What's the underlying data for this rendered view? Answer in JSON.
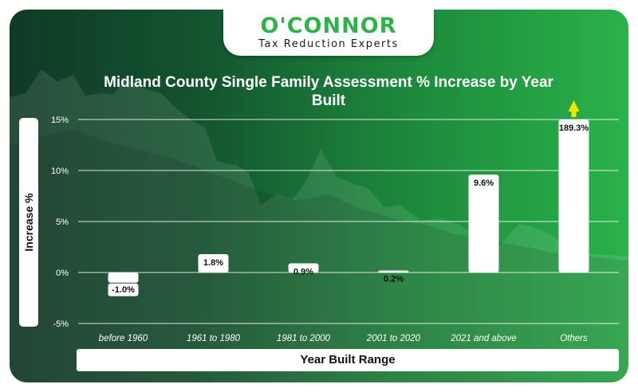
{
  "brand": {
    "name": "O'CONNOR",
    "tagline": "Tax Reduction Experts"
  },
  "colors": {
    "accent": "#2db34a",
    "bar": "#ffffff",
    "arrow": "#f2e600"
  },
  "chart_data": {
    "type": "bar",
    "title": "Midland County Single Family Assessment % Increase by Year Built",
    "xlabel": "Year Built Range",
    "ylabel": "Increase %",
    "categories": [
      "before 1960",
      "1961 to 1980",
      "1981 to 2000",
      "2001 to 2020",
      "2021 and above",
      "Others"
    ],
    "values": [
      -1.0,
      1.8,
      0.9,
      0.2,
      9.6,
      189.3
    ],
    "value_labels": [
      "-1.0%",
      "1.8%",
      "0.9%",
      "0.2%",
      "9.6%",
      "189.3%"
    ],
    "ylim": [
      -5,
      15
    ],
    "yticks": [
      {
        "value": 15,
        "label": "15%"
      },
      {
        "value": 10,
        "label": "10%"
      },
      {
        "value": 5,
        "label": "5%"
      },
      {
        "value": 0,
        "label": "0%"
      },
      {
        "value": -5,
        "label": "-5%"
      }
    ],
    "grid": true,
    "clipped_categories": [
      "Others"
    ]
  }
}
